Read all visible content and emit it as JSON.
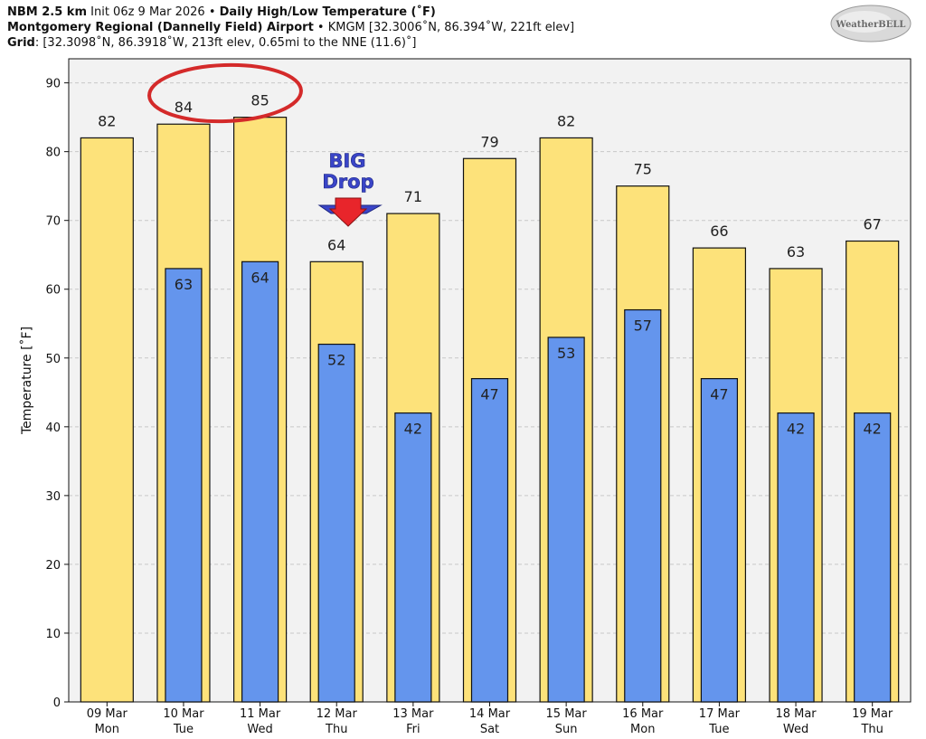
{
  "header": {
    "line1": {
      "model": "NBM 2.5 km",
      "init": " Init 06z 9 Mar 2026",
      "sep": " • ",
      "product": "Daily High/Low Temperature (˚F)"
    },
    "line2": {
      "station": "Montgomery Regional (Dannelly Field) Airport",
      "sep": " • ",
      "detail": "KMGM [32.3006˚N, 86.394˚W, 221ft elev]"
    },
    "line3": {
      "label": "Grid",
      "detail": ": [32.3098˚N, 86.3918˚W, 213ft elev, 0.65mi to the NNE (11.6)˚]"
    }
  },
  "logo": {
    "text": "WeatherBELL"
  },
  "annotation": {
    "big": "BIG",
    "drop": "Drop",
    "arrow_color": "#e8252b",
    "text_color": "#3a45c8",
    "circle_color": "#d42a2a"
  },
  "chart_data": {
    "type": "bar",
    "ylabel": "Temperature [˚F]",
    "ylim": [
      0,
      90
    ],
    "yticks": [
      0,
      10,
      20,
      30,
      40,
      50,
      60,
      70,
      80,
      90
    ],
    "grid": true,
    "categories": [
      [
        "09 Mar",
        "Mon"
      ],
      [
        "10 Mar",
        "Tue"
      ],
      [
        "11 Mar",
        "Wed"
      ],
      [
        "12 Mar",
        "Thu"
      ],
      [
        "13 Mar",
        "Fri"
      ],
      [
        "14 Mar",
        "Sat"
      ],
      [
        "15 Mar",
        "Sun"
      ],
      [
        "16 Mar",
        "Mon"
      ],
      [
        "17 Mar",
        "Tue"
      ],
      [
        "18 Mar",
        "Wed"
      ],
      [
        "19 Mar",
        "Thu"
      ]
    ],
    "series": [
      {
        "values": [
          82,
          84,
          85,
          64,
          71,
          79,
          82,
          75,
          66,
          63,
          67
        ],
        "color": "#fde27a",
        "edge": "#111111"
      },
      {
        "values": [
          null,
          63,
          64,
          52,
          42,
          47,
          53,
          57,
          47,
          42,
          42
        ],
        "color": "#6495ed",
        "edge": "#111111"
      }
    ],
    "high_labels": [
      "82",
      "84",
      "85",
      "64",
      "71",
      "79",
      "82",
      "75",
      "66",
      "63",
      "67"
    ],
    "low_labels": [
      "",
      "63",
      "64",
      "52",
      "42",
      "47",
      "53",
      "57",
      "47",
      "42",
      "42"
    ]
  }
}
